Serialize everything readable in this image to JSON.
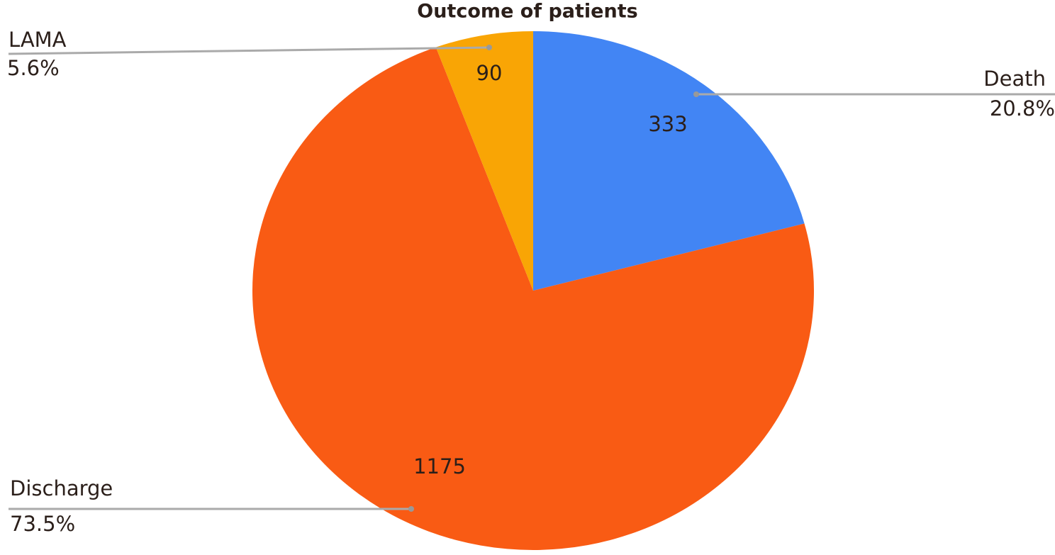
{
  "chart_data": {
    "type": "pie",
    "title": "Outcome of patients",
    "categories": [
      "Death",
      "Discharge",
      "LAMA"
    ],
    "values": [
      333,
      1175,
      90
    ],
    "percent_labels": [
      "20.8%",
      "73.5%",
      "5.6%"
    ],
    "colors": [
      "#4285f4",
      "#f95b14",
      "#f9a505"
    ]
  }
}
